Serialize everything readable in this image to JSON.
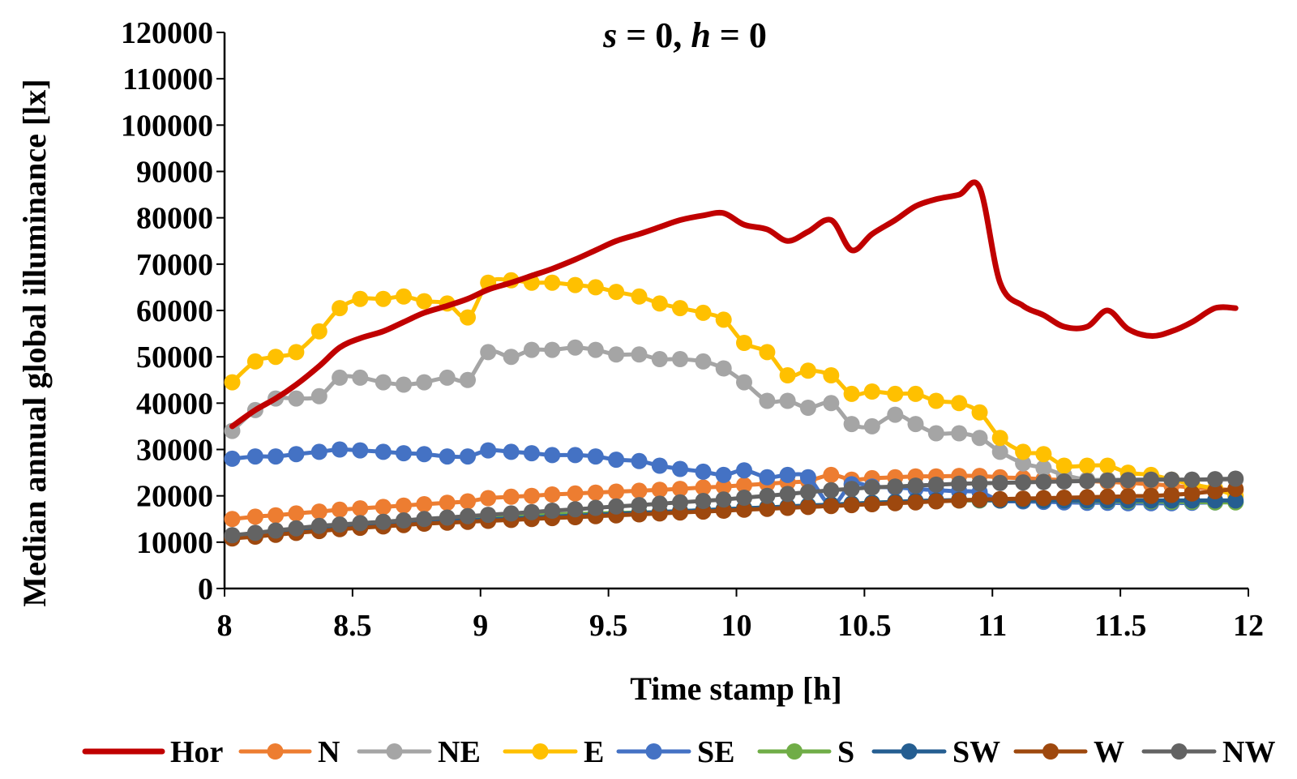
{
  "chart_data": {
    "type": "line",
    "title": "s = 0, h = 0",
    "title_parts": {
      "s": "s",
      "eq1": " = 0, ",
      "h": "h",
      "eq2": " = 0"
    },
    "xlabel": "Time stamp [h]",
    "ylabel": "Median annual global illuminance [lx]",
    "xlim": [
      8,
      12
    ],
    "ylim": [
      0,
      120000
    ],
    "xticks": [
      8,
      8.5,
      9,
      9.5,
      10,
      10.5,
      11,
      11.5,
      12
    ],
    "xtick_labels": [
      "8",
      "8.5",
      "9",
      "9.5",
      "10",
      "10.5",
      "11",
      "11.5",
      "12"
    ],
    "yticks": [
      0,
      10000,
      20000,
      30000,
      40000,
      50000,
      60000,
      70000,
      80000,
      90000,
      100000,
      110000,
      120000
    ],
    "ytick_labels": [
      "0",
      "10000",
      "20000",
      "30000",
      "40000",
      "50000",
      "60000",
      "70000",
      "80000",
      "90000",
      "100000",
      "110000",
      "120000"
    ],
    "grid": false,
    "legend_position": "bottom",
    "x": [
      8.03,
      8.12,
      8.2,
      8.28,
      8.37,
      8.45,
      8.53,
      8.62,
      8.7,
      8.78,
      8.87,
      8.95,
      9.03,
      9.12,
      9.2,
      9.28,
      9.37,
      9.45,
      9.53,
      9.62,
      9.7,
      9.78,
      9.87,
      9.95,
      10.03,
      10.12,
      10.2,
      10.28,
      10.37,
      10.45,
      10.53,
      10.62,
      10.7,
      10.78,
      10.87,
      10.95,
      11.03,
      11.12,
      11.2,
      11.28,
      11.37,
      11.45,
      11.53,
      11.62,
      11.7,
      11.78,
      11.87,
      11.95
    ],
    "series": [
      {
        "name": "Hor",
        "color": "#C00000",
        "markers": false,
        "values": [
          35000,
          38500,
          41000,
          44000,
          48000,
          52000,
          54000,
          55500,
          57500,
          59500,
          61000,
          62500,
          64500,
          66000,
          67500,
          69000,
          71000,
          73000,
          75000,
          76500,
          78000,
          79500,
          80500,
          81000,
          78500,
          77500,
          75000,
          77000,
          79500,
          73000,
          76500,
          79500,
          82500,
          84000,
          85000,
          86500,
          66000,
          61000,
          59000,
          56500,
          56500,
          60000,
          56000,
          54500,
          55500,
          57500,
          60500,
          60500
        ]
      },
      {
        "name": "N",
        "color": "#ED7D31",
        "markers": true,
        "values": [
          15000,
          15500,
          15800,
          16200,
          16600,
          17000,
          17300,
          17600,
          17900,
          18200,
          18500,
          18800,
          19500,
          19800,
          20000,
          20300,
          20500,
          20700,
          20900,
          21100,
          21300,
          21500,
          21800,
          22000,
          22300,
          22600,
          22900,
          23200,
          24500,
          23500,
          23800,
          24000,
          24200,
          24200,
          24300,
          24300,
          24000,
          23800,
          23600,
          23400,
          23200,
          23000,
          22800,
          22500,
          22200,
          21800,
          21500,
          21200
        ]
      },
      {
        "name": "NE",
        "color": "#A5A5A5",
        "markers": true,
        "values": [
          34000,
          38500,
          41000,
          41000,
          41500,
          45500,
          45500,
          44500,
          44000,
          44500,
          45500,
          45000,
          51000,
          50000,
          51500,
          51500,
          52000,
          51500,
          50500,
          50500,
          49500,
          49500,
          49000,
          47500,
          44500,
          40500,
          40500,
          39000,
          40000,
          35500,
          35000,
          37500,
          35500,
          33500,
          33500,
          32500,
          29500,
          27000,
          26000,
          24500,
          23500,
          23500,
          23500,
          23500,
          23500,
          23500,
          23500,
          23500
        ]
      },
      {
        "name": "E",
        "color": "#FFC000",
        "markers": true,
        "values": [
          44500,
          49000,
          50000,
          51000,
          55500,
          60500,
          62500,
          62500,
          63000,
          62000,
          61500,
          58500,
          66000,
          66500,
          66000,
          66000,
          65500,
          65000,
          64000,
          63000,
          61500,
          60500,
          59500,
          58000,
          53000,
          51000,
          46000,
          47000,
          46000,
          42000,
          42500,
          42000,
          42000,
          40500,
          40000,
          38000,
          32500,
          29500,
          29000,
          26500,
          26500,
          26500,
          25000,
          24500,
          23500,
          22500,
          21500,
          20000
        ]
      },
      {
        "name": "SE",
        "color": "#4472C4",
        "markers": true,
        "values": [
          28000,
          28500,
          28500,
          29000,
          29500,
          30000,
          29800,
          29500,
          29200,
          29000,
          28500,
          28500,
          29800,
          29500,
          29200,
          28800,
          28800,
          28500,
          27800,
          27500,
          26500,
          25800,
          25200,
          24500,
          25500,
          24000,
          24500,
          24000,
          18000,
          22500,
          22000,
          21800,
          21500,
          21200,
          21000,
          20800,
          19000,
          18800,
          18700,
          18600,
          18500,
          18500,
          18400,
          18400,
          18400,
          18500,
          18600,
          18700
        ]
      },
      {
        "name": "S",
        "color": "#70AD47",
        "markers": true,
        "values": [
          11000,
          11500,
          12000,
          12500,
          13000,
          13300,
          13600,
          14000,
          14300,
          14600,
          14900,
          15200,
          15500,
          15700,
          15900,
          16000,
          16100,
          16200,
          16300,
          16400,
          16500,
          16700,
          16900,
          17100,
          17300,
          17500,
          17700,
          17900,
          18100,
          18300,
          18500,
          18700,
          18800,
          18900,
          19000,
          19000,
          19000,
          19000,
          19000,
          19000,
          18900,
          18900,
          18800,
          18800,
          18700,
          18700,
          18600,
          18600
        ]
      },
      {
        "name": "SW",
        "color": "#255E91",
        "markers": true,
        "values": [
          11000,
          11400,
          11800,
          12200,
          12600,
          13000,
          13300,
          13600,
          13900,
          14200,
          14500,
          14700,
          14900,
          15100,
          15300,
          15500,
          15700,
          15900,
          16100,
          16300,
          16500,
          16700,
          16900,
          17100,
          17300,
          17500,
          17700,
          17900,
          18100,
          18300,
          18500,
          18700,
          18900,
          19000,
          19100,
          19100,
          19000,
          19000,
          19000,
          19000,
          19000,
          19000,
          19000,
          19000,
          19000,
          19000,
          19000,
          19000
        ]
      },
      {
        "name": "W",
        "color": "#9E480E",
        "markers": true,
        "values": [
          10800,
          11200,
          11600,
          12000,
          12400,
          12800,
          13100,
          13400,
          13700,
          14000,
          14200,
          14400,
          14600,
          14800,
          15000,
          15200,
          15400,
          15600,
          15800,
          16000,
          16200,
          16400,
          16600,
          16800,
          17000,
          17200,
          17400,
          17600,
          17800,
          18000,
          18200,
          18400,
          18600,
          18800,
          19000,
          19200,
          19300,
          19400,
          19500,
          19600,
          19700,
          19800,
          19900,
          20000,
          20200,
          20500,
          21000,
          21500
        ]
      },
      {
        "name": "NW",
        "color": "#636363",
        "markers": true,
        "values": [
          11500,
          12000,
          12500,
          13000,
          13500,
          13800,
          14100,
          14400,
          14700,
          15000,
          15300,
          15600,
          15900,
          16200,
          16500,
          16800,
          17100,
          17400,
          17700,
          18000,
          18300,
          18600,
          18900,
          19200,
          19600,
          20000,
          20400,
          20800,
          21200,
          21500,
          21800,
          22000,
          22200,
          22400,
          22600,
          22700,
          22800,
          22900,
          23000,
          23100,
          23200,
          23300,
          23400,
          23500,
          23500,
          23500,
          23600,
          23700
        ]
      }
    ]
  }
}
